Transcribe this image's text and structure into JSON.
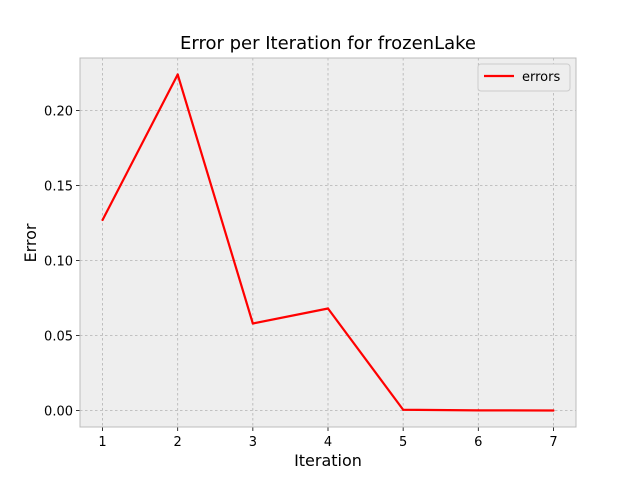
{
  "chart_data": {
    "type": "line",
    "title": "Error per Iteration for frozenLake",
    "xlabel": "Iteration",
    "ylabel": "Error",
    "x": [
      1,
      2,
      3,
      4,
      5,
      6,
      7
    ],
    "series": [
      {
        "name": "errors",
        "color": "#ff0000",
        "values": [
          0.127,
          0.224,
          0.058,
          0.068,
          0.0005,
          0.0001,
          0.0
        ]
      }
    ],
    "xlim": [
      0.7,
      7.3
    ],
    "ylim": [
      -0.011,
      0.235
    ],
    "xticks": [
      "1",
      "2",
      "3",
      "4",
      "5",
      "6",
      "7"
    ],
    "yticks": [
      "0.00",
      "0.05",
      "0.10",
      "0.15",
      "0.20"
    ],
    "ytick_values": [
      0.0,
      0.05,
      0.1,
      0.15,
      0.2
    ],
    "grid": true,
    "legend_position": "top-right"
  }
}
